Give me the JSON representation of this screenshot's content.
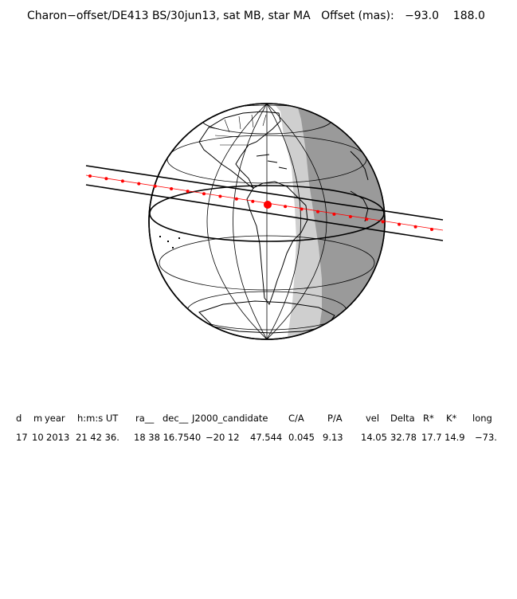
{
  "title": "Charon−offset/DE413 BS/30jun13, sat MB, star MA   Offset (mas):   −93.0    188.0",
  "colors": {
    "night": "#9a9a9a",
    "twilight": "#cfcfcf",
    "track": "#ff0000",
    "outline": "#000000"
  },
  "table": {
    "headers": [
      "d",
      "m",
      "year",
      "h:m:s UT",
      "ra__",
      "dec__",
      "J2000_candidate",
      "C/A",
      "P/A",
      "vel",
      "Delta",
      "R*",
      "K*",
      "long"
    ],
    "values": [
      "17",
      "10",
      "2013",
      "21 42 36.",
      "18 38 16.7540",
      "−20 12",
      "47.544",
      "0.045",
      "9.13",
      "14.05",
      "32.78",
      "17.7",
      "14.9",
      "−73."
    ]
  },
  "map": {
    "projection": "orthographic",
    "events": "occultation shadow path",
    "track_marker_count": 22
  }
}
